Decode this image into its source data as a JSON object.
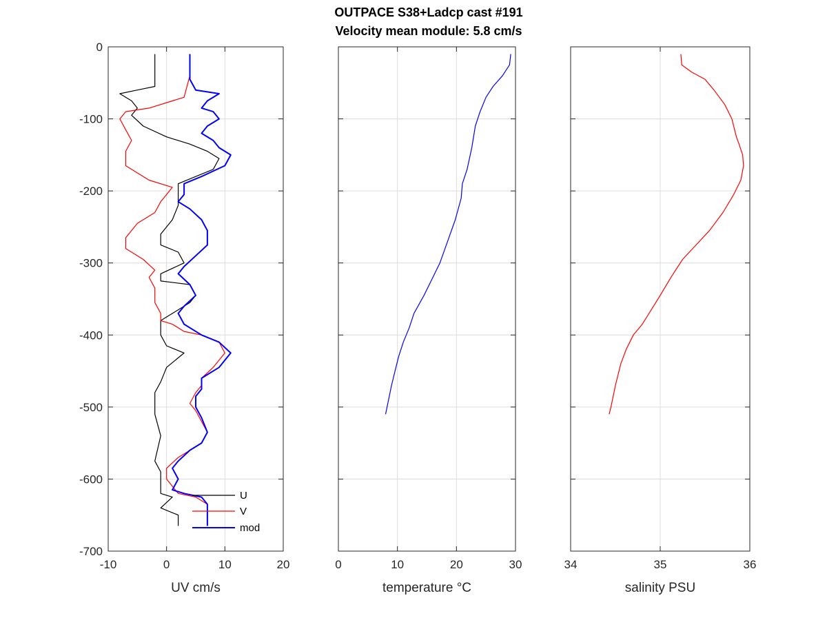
{
  "title_line1": "OUTPACE S38+Ladcp cast #191",
  "title_line2": "Velocity mean module:  5.8 cm/s",
  "chart_data": [
    {
      "type": "line",
      "xlabel": "UV cm/s",
      "ylabel": "",
      "xlim": [
        -10,
        20
      ],
      "ylim": [
        -700,
        0
      ],
      "xticks": [
        "-10",
        "0",
        "10",
        "20"
      ],
      "yticks": [
        "0",
        "-100",
        "-200",
        "-300",
        "-400",
        "-500",
        "-600",
        "-700"
      ],
      "grid": true,
      "legend_position": "bottom",
      "legend": [
        "U",
        "V",
        "mod"
      ],
      "series": [
        {
          "name": "U",
          "color": "#000000",
          "points": [
            [
              -2,
              -10
            ],
            [
              -2,
              -55
            ],
            [
              -5,
              -60
            ],
            [
              -8,
              -65
            ],
            [
              -6,
              -75
            ],
            [
              -5,
              -85
            ],
            [
              -6,
              -95
            ],
            [
              -4,
              -110
            ],
            [
              0,
              -125
            ],
            [
              4,
              -135
            ],
            [
              7,
              -145
            ],
            [
              9,
              -155
            ],
            [
              8,
              -170
            ],
            [
              5,
              -180
            ],
            [
              2,
              -190
            ],
            [
              2,
              -200
            ],
            [
              2,
              -220
            ],
            [
              1,
              -240
            ],
            [
              -1,
              -260
            ],
            [
              -1,
              -275
            ],
            [
              2,
              -285
            ],
            [
              3,
              -300
            ],
            [
              -1,
              -315
            ],
            [
              -1,
              -325
            ],
            [
              4,
              -330
            ],
            [
              5,
              -345
            ],
            [
              4,
              -355
            ],
            [
              2,
              -365
            ],
            [
              -1,
              -380
            ],
            [
              -1,
              -400
            ],
            [
              0,
              -415
            ],
            [
              3,
              -425
            ],
            [
              0,
              -445
            ],
            [
              -1,
              -465
            ],
            [
              -2,
              -480
            ],
            [
              -2,
              -510
            ],
            [
              -1,
              -540
            ],
            [
              -2,
              -575
            ],
            [
              -1,
              -590
            ],
            [
              -1,
              -610
            ],
            [
              -1,
              -620
            ],
            [
              1,
              -625
            ],
            [
              -1,
              -640
            ],
            [
              2,
              -650
            ],
            [
              2,
              -665
            ]
          ]
        },
        {
          "name": "V",
          "color": "#ff0000",
          "points": [
            [
              4,
              -10
            ],
            [
              4,
              -40
            ],
            [
              3,
              -70
            ],
            [
              -3,
              -85
            ],
            [
              -7,
              -90
            ],
            [
              -8,
              -100
            ],
            [
              -7,
              -115
            ],
            [
              -6,
              -130
            ],
            [
              -7,
              -145
            ],
            [
              -7,
              -165
            ],
            [
              -5,
              -175
            ],
            [
              -3,
              -185
            ],
            [
              1,
              -195
            ],
            [
              0,
              -205
            ],
            [
              -1,
              -215
            ],
            [
              -2,
              -230
            ],
            [
              -5,
              -245
            ],
            [
              -7,
              -265
            ],
            [
              -7,
              -280
            ],
            [
              -4,
              -295
            ],
            [
              -2,
              -310
            ],
            [
              -3,
              -320
            ],
            [
              -2,
              -335
            ],
            [
              -2,
              -355
            ],
            [
              -1,
              -370
            ],
            [
              -1,
              -380
            ],
            [
              1,
              -385
            ],
            [
              3,
              -395
            ],
            [
              6,
              -400
            ],
            [
              9,
              -410
            ],
            [
              10,
              -425
            ],
            [
              8,
              -445
            ],
            [
              6,
              -460
            ],
            [
              6,
              -470
            ],
            [
              5,
              -480
            ],
            [
              4,
              -495
            ],
            [
              5,
              -505
            ],
            [
              6,
              -520
            ],
            [
              7,
              -535
            ],
            [
              6,
              -550
            ],
            [
              4,
              -560
            ],
            [
              2,
              -570
            ],
            [
              0,
              -585
            ],
            [
              0,
              -600
            ],
            [
              1,
              -610
            ],
            [
              2,
              -620
            ],
            [
              5,
              -625
            ],
            [
              7,
              -635
            ],
            [
              7,
              -665
            ]
          ]
        },
        {
          "name": "mod",
          "color": "#0000ff",
          "points": [
            [
              4,
              -10
            ],
            [
              4,
              -45
            ],
            [
              5,
              -60
            ],
            [
              9,
              -65
            ],
            [
              7,
              -75
            ],
            [
              6,
              -85
            ],
            [
              8,
              -90
            ],
            [
              9,
              -100
            ],
            [
              7,
              -110
            ],
            [
              6,
              -120
            ],
            [
              8,
              -130
            ],
            [
              9,
              -140
            ],
            [
              11,
              -150
            ],
            [
              10,
              -165
            ],
            [
              6,
              -180
            ],
            [
              3,
              -190
            ],
            [
              3,
              -205
            ],
            [
              2,
              -215
            ],
            [
              4,
              -225
            ],
            [
              6,
              -240
            ],
            [
              7,
              -255
            ],
            [
              7,
              -275
            ],
            [
              5,
              -290
            ],
            [
              3,
              -305
            ],
            [
              2,
              -315
            ],
            [
              4,
              -330
            ],
            [
              5,
              -345
            ],
            [
              3,
              -360
            ],
            [
              2,
              -370
            ],
            [
              3,
              -385
            ],
            [
              6,
              -400
            ],
            [
              9,
              -410
            ],
            [
              11,
              -425
            ],
            [
              9,
              -445
            ],
            [
              6,
              -460
            ],
            [
              6,
              -475
            ],
            [
              5,
              -485
            ],
            [
              5,
              -500
            ],
            [
              6,
              -515
            ],
            [
              7,
              -535
            ],
            [
              6,
              -550
            ],
            [
              4,
              -560
            ],
            [
              2,
              -575
            ],
            [
              1,
              -585
            ],
            [
              2,
              -600
            ],
            [
              1,
              -615
            ],
            [
              3,
              -620
            ],
            [
              6,
              -625
            ],
            [
              7,
              -635
            ],
            [
              7,
              -665
            ]
          ]
        }
      ]
    },
    {
      "type": "line",
      "xlabel": "temperature °C",
      "ylabel": "",
      "xlim": [
        0,
        30
      ],
      "ylim": [
        -700,
        0
      ],
      "xticks": [
        "0",
        "10",
        "20",
        "30"
      ],
      "grid": true,
      "series": [
        {
          "color": "#0000ff",
          "points": [
            [
              29.2,
              -10
            ],
            [
              29,
              -25
            ],
            [
              27.8,
              -40
            ],
            [
              26.2,
              -55
            ],
            [
              25,
              -70
            ],
            [
              24,
              -90
            ],
            [
              23.2,
              -110
            ],
            [
              22.6,
              -140
            ],
            [
              21.8,
              -170
            ],
            [
              21,
              -190
            ],
            [
              20.8,
              -210
            ],
            [
              19.8,
              -240
            ],
            [
              18.5,
              -270
            ],
            [
              17.2,
              -300
            ],
            [
              16,
              -320
            ],
            [
              14.5,
              -345
            ],
            [
              12.8,
              -370
            ],
            [
              12,
              -390
            ],
            [
              11,
              -410
            ],
            [
              10.2,
              -430
            ],
            [
              9.6,
              -450
            ],
            [
              9,
              -470
            ],
            [
              8.5,
              -490
            ],
            [
              8,
              -510
            ]
          ]
        }
      ]
    },
    {
      "type": "line",
      "xlabel": "salinity PSU",
      "ylabel": "",
      "xlim": [
        34,
        36
      ],
      "ylim": [
        -700,
        0
      ],
      "xticks": [
        "34",
        "35",
        "36"
      ],
      "grid": true,
      "series": [
        {
          "color": "#ff0000",
          "points": [
            [
              35.23,
              -10
            ],
            [
              35.24,
              -25
            ],
            [
              35.35,
              -35
            ],
            [
              35.5,
              -45
            ],
            [
              35.6,
              -60
            ],
            [
              35.72,
              -80
            ],
            [
              35.8,
              -100
            ],
            [
              35.85,
              -125
            ],
            [
              35.88,
              -135
            ],
            [
              35.92,
              -150
            ],
            [
              35.93,
              -165
            ],
            [
              35.9,
              -185
            ],
            [
              35.82,
              -205
            ],
            [
              35.7,
              -230
            ],
            [
              35.55,
              -255
            ],
            [
              35.4,
              -275
            ],
            [
              35.25,
              -295
            ],
            [
              35.12,
              -320
            ],
            [
              35.0,
              -345
            ],
            [
              34.9,
              -365
            ],
            [
              34.8,
              -385
            ],
            [
              34.7,
              -400
            ],
            [
              34.62,
              -420
            ],
            [
              34.56,
              -440
            ],
            [
              34.5,
              -470
            ],
            [
              34.45,
              -500
            ],
            [
              34.43,
              -510
            ]
          ]
        }
      ]
    }
  ]
}
